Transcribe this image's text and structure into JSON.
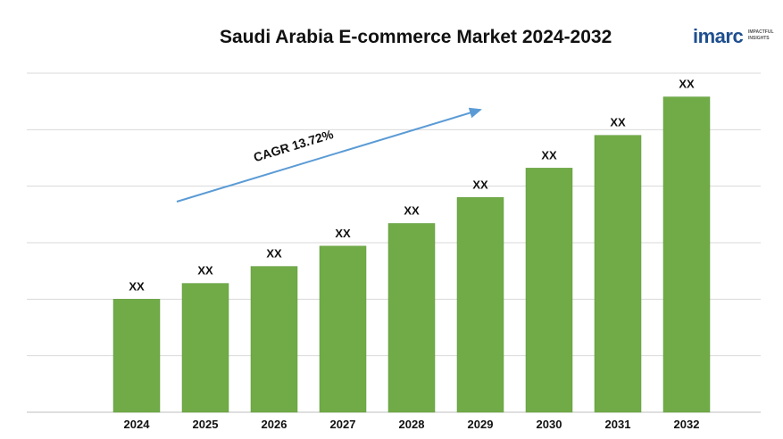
{
  "chart_data": {
    "type": "bar",
    "title": "Saudi Arabia E-commerce Market 2024-2032",
    "categories": [
      "2024",
      "2025",
      "2026",
      "2027",
      "2028",
      "2029",
      "2030",
      "2031",
      "2032"
    ],
    "values": [
      1.0,
      1.14,
      1.29,
      1.47,
      1.67,
      1.9,
      2.16,
      2.45,
      2.79
    ],
    "data_labels": [
      "XX",
      "XX",
      "XX",
      "XX",
      "XX",
      "XX",
      "XX",
      "XX",
      "XX"
    ],
    "annotation": "CAGR 13.72%",
    "ylim": [
      0,
      3.0
    ],
    "grid": true,
    "legend": "none",
    "bar_color": "#71ab48",
    "arrow_color": "#5b9bd5"
  },
  "logo": {
    "word": "imarc",
    "tagline_1": "IMPACTFUL",
    "tagline_2": "INSIGHTS"
  }
}
